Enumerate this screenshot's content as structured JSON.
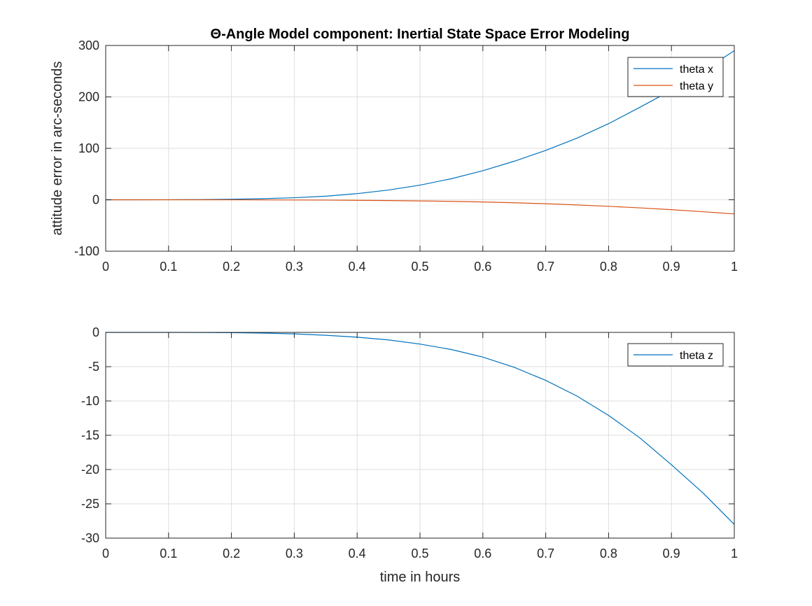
{
  "chart_data": [
    {
      "type": "line",
      "title": "Θ-Angle Model component: Inertial State Space Error Modeling",
      "xlabel": "",
      "ylabel": "attitude error in arc-seconds",
      "xlim": [
        0,
        1
      ],
      "ylim": [
        -100,
        300
      ],
      "xticks": [
        "0",
        "0.1",
        "0.2",
        "0.3",
        "0.4",
        "0.5",
        "0.6",
        "0.7",
        "0.8",
        "0.9",
        "1"
      ],
      "yticks": [
        "-100",
        "0",
        "100",
        "200",
        "300"
      ],
      "grid": true,
      "legend_position": "top-right",
      "x": [
        0,
        0.05,
        0.1,
        0.15,
        0.2,
        0.25,
        0.3,
        0.35,
        0.4,
        0.45,
        0.5,
        0.55,
        0.6,
        0.65,
        0.7,
        0.75,
        0.8,
        0.85,
        0.9,
        0.95,
        1.0
      ],
      "series": [
        {
          "name": "theta x",
          "color": "#0072BD",
          "values": [
            0,
            0.01,
            0.1,
            0.4,
            1.1,
            2.2,
            4.0,
            7.0,
            12.0,
            19.0,
            28.5,
            41.0,
            56.5,
            75.0,
            96.0,
            120.0,
            148.0,
            180.0,
            213.0,
            250.0,
            290.0
          ]
        },
        {
          "name": "theta y",
          "color": "#D95319",
          "values": [
            0,
            0,
            0,
            0,
            -0.1,
            -0.2,
            -0.4,
            -0.6,
            -1.0,
            -1.5,
            -2.2,
            -3.1,
            -4.3,
            -5.8,
            -7.7,
            -10.0,
            -12.7,
            -15.7,
            -19.2,
            -23.2,
            -27.5
          ]
        }
      ]
    },
    {
      "type": "line",
      "title": "",
      "xlabel": "time in hours",
      "ylabel": "",
      "xlim": [
        0,
        1
      ],
      "ylim": [
        -30,
        0
      ],
      "xticks": [
        "0",
        "0.1",
        "0.2",
        "0.3",
        "0.4",
        "0.5",
        "0.6",
        "0.7",
        "0.8",
        "0.9",
        "1"
      ],
      "yticks": [
        "-30",
        "-25",
        "-20",
        "-15",
        "-10",
        "-5",
        "0"
      ],
      "grid": true,
      "legend_position": "top-right",
      "x": [
        0,
        0.05,
        0.1,
        0.15,
        0.2,
        0.25,
        0.3,
        0.35,
        0.4,
        0.45,
        0.5,
        0.55,
        0.6,
        0.65,
        0.7,
        0.75,
        0.8,
        0.85,
        0.9,
        0.95,
        1.0
      ],
      "series": [
        {
          "name": "theta z",
          "color": "#0072BD",
          "values": [
            0,
            0,
            0,
            -0.01,
            -0.04,
            -0.1,
            -0.22,
            -0.42,
            -0.7,
            -1.1,
            -1.7,
            -2.5,
            -3.6,
            -5.1,
            -7.0,
            -9.3,
            -12.1,
            -15.4,
            -19.3,
            -23.4,
            -28.0
          ]
        }
      ]
    }
  ]
}
